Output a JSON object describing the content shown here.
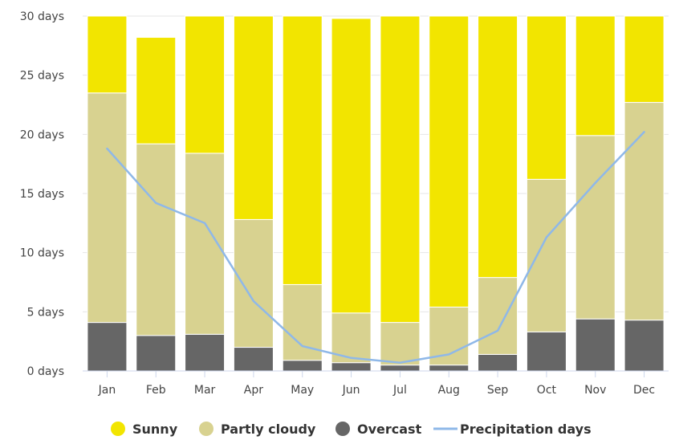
{
  "chart_data": {
    "type": "bar",
    "stacked": true,
    "categories": [
      "Jan",
      "Feb",
      "Mar",
      "Apr",
      "May",
      "Jun",
      "Jul",
      "Aug",
      "Sep",
      "Oct",
      "Nov",
      "Dec"
    ],
    "y_ticks": [
      "0 days",
      "5 days",
      "10 days",
      "15 days",
      "20 days",
      "25 days",
      "30 days"
    ],
    "ylim": [
      0,
      30
    ],
    "grid": true,
    "legend_position": "bottom",
    "series": [
      {
        "name": "Overcast",
        "type": "bar",
        "color": "#666666",
        "values": [
          4.1,
          3.0,
          3.1,
          2.0,
          0.9,
          0.7,
          0.5,
          0.5,
          1.4,
          3.3,
          4.4,
          4.3
        ]
      },
      {
        "name": "Partly cloudy",
        "type": "bar",
        "color": "#d8d290",
        "values": [
          19.4,
          16.2,
          15.3,
          10.8,
          6.4,
          4.2,
          3.6,
          4.9,
          6.5,
          12.9,
          15.5,
          18.4
        ]
      },
      {
        "name": "Sunny",
        "type": "bar",
        "color": "#f2e500",
        "values": [
          6.5,
          9.0,
          11.6,
          17.2,
          22.7,
          24.9,
          25.9,
          24.6,
          22.1,
          13.8,
          10.1,
          7.3
        ]
      },
      {
        "name": "Precipitation days",
        "type": "line",
        "color": "#8fb8e8",
        "values": [
          18.8,
          14.2,
          12.5,
          5.9,
          2.1,
          1.1,
          0.7,
          1.4,
          3.4,
          11.3,
          15.9,
          20.2
        ]
      }
    ]
  }
}
